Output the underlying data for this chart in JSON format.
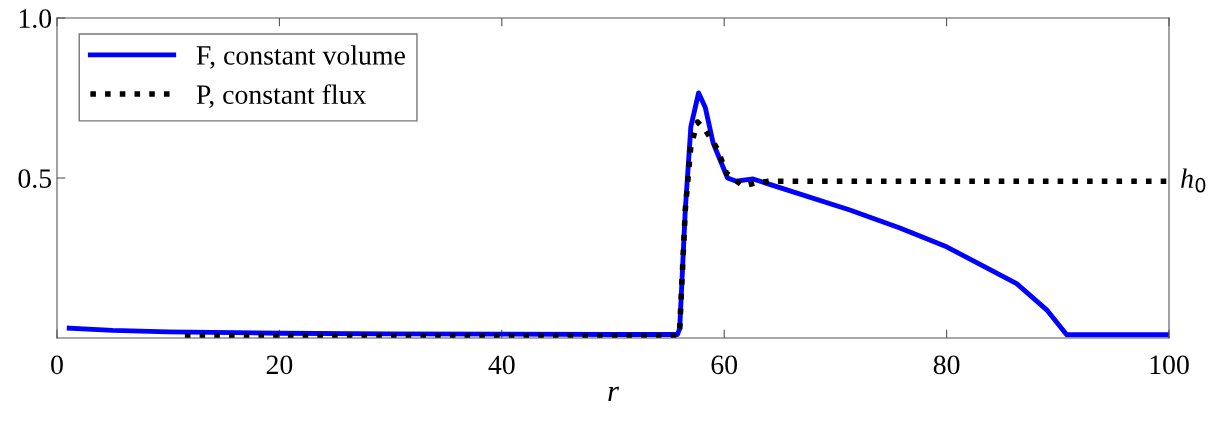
{
  "chart_data": {
    "type": "line",
    "xlabel": "r",
    "xlim": [
      0,
      100
    ],
    "xticks": [
      0,
      20,
      40,
      60,
      80,
      100
    ],
    "ylim": [
      0,
      1
    ],
    "yticks": [
      0.5,
      {
        "value": 1.0,
        "label": "1.0"
      }
    ],
    "annotations": [
      {
        "text": "h$_{0}$",
        "x": 100,
        "y": 0.49
      }
    ],
    "grid": false,
    "legend": "top left",
    "marker": "none",
    "series": [
      {
        "name": "F, constant volume",
        "color": "#0000ff",
        "line_style": "solid",
        "x": [
          1.1,
          5,
          10,
          20,
          30,
          40,
          50,
          55.8,
          56.0,
          56.5,
          57.0,
          57.7,
          58.3,
          59.0,
          60.3,
          61.1,
          62.6,
          65,
          71.3,
          75.8,
          80,
          86.3,
          89,
          90.8,
          95,
          100
        ],
        "values": [
          0.031,
          0.024,
          0.019,
          0.015,
          0.013,
          0.012,
          0.011,
          0.011,
          0.03,
          0.4,
          0.66,
          0.766,
          0.72,
          0.61,
          0.5,
          0.49,
          0.497,
          0.47,
          0.4,
          0.344,
          0.285,
          0.17,
          0.088,
          0.01,
          0.01,
          0.01
        ]
      },
      {
        "name": "P, constant flux",
        "color": "#000000",
        "line_style": "dotted",
        "x": [
          11.5,
          20,
          40,
          55.8,
          56.0,
          56.5,
          57.0,
          57.6,
          58.3,
          59.4,
          60.2,
          61.7,
          62.9,
          64.1,
          70,
          80,
          90,
          100
        ],
        "values": [
          0.005,
          0.005,
          0.005,
          0.005,
          0.03,
          0.4,
          0.6,
          0.675,
          0.65,
          0.59,
          0.515,
          0.475,
          0.485,
          0.49,
          0.49,
          0.49,
          0.49,
          0.49
        ]
      }
    ]
  }
}
